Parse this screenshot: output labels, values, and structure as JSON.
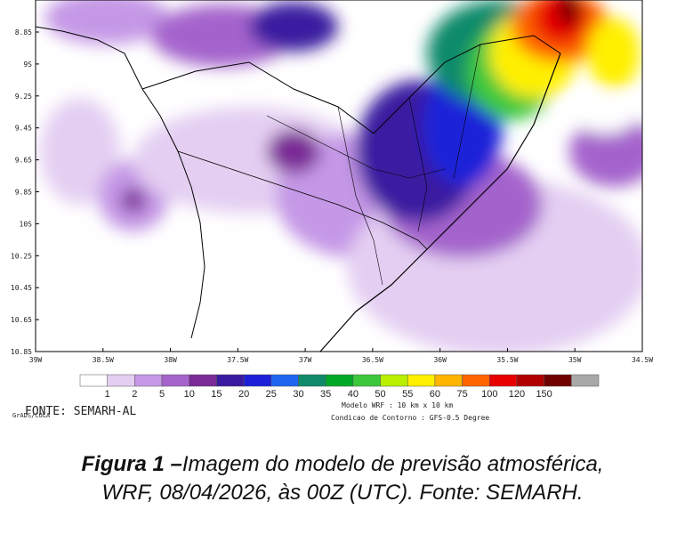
{
  "map": {
    "lat_labels": [
      "8.85",
      "9S",
      "9.25",
      "9.45",
      "9.65",
      "9.85",
      "10S",
      "10.25",
      "10.45",
      "10.65",
      "10.85"
    ],
    "lon_labels": [
      "39W",
      "38.5W",
      "38W",
      "37.5W",
      "37W",
      "36.5W",
      "36W",
      "35.5W",
      "35W",
      "34.5W"
    ]
  },
  "colorbar": {
    "labels": [
      "1",
      "2",
      "5",
      "10",
      "15",
      "20",
      "25",
      "30",
      "35",
      "40",
      "50",
      "55",
      "60",
      "75",
      "100",
      "120",
      "150"
    ],
    "colors": [
      "#ffffff",
      "#e4cff2",
      "#c598e6",
      "#a464cc",
      "#7a2a96",
      "#3a1aa0",
      "#1c20d8",
      "#1e66f0",
      "#0e8a6a",
      "#00a828",
      "#3cc83c",
      "#b8f000",
      "#fff000",
      "#ffb400",
      "#ff6400",
      "#e80000",
      "#b00000",
      "#6e0000",
      "#a8a8a8"
    ]
  },
  "source": "FONTE: SEMARH-AL",
  "grads": "GrADS/COLA",
  "model_note": "Modelo WRF : 10 km x 10 km",
  "boundary_note": "Condicao de Contorno : GFS-0.5 Degree",
  "caption": {
    "label": "Figura 1 –",
    "text_line1": "Imagem do modelo de previsão atmosférica,",
    "text_line2": "WRF, 08/04/2026, às 00Z (UTC). Fonte: SEMARH."
  }
}
